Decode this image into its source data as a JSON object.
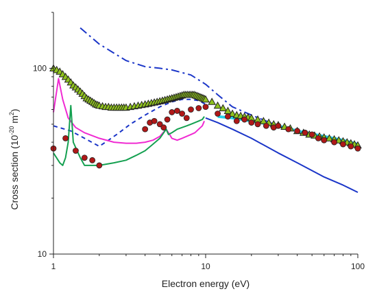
{
  "chart_data": {
    "type": "line",
    "title": "",
    "xlabel": "Electron energy (eV)",
    "ylabel_main": "Cross section (10",
    "ylabel_sup": "-20",
    "ylabel_tail": " m",
    "ylabel_sup2": "2",
    "ylabel_end": ")",
    "xscale": "log",
    "yscale": "log",
    "xlim": [
      1,
      100
    ],
    "ylim": [
      10,
      200
    ],
    "x_ticks": [
      {
        "value": 1,
        "label": "1"
      },
      {
        "value": 10,
        "label": "10"
      },
      {
        "value": 100,
        "label": "100"
      }
    ],
    "y_ticks": [
      {
        "value": 10,
        "label": "10"
      },
      {
        "value": 100,
        "label": "100"
      }
    ],
    "series": [
      {
        "style": "dash-dot",
        "color": "#1a35c8",
        "x": [
          1.5,
          2,
          3,
          4,
          5,
          6,
          8,
          10,
          12,
          15,
          20,
          30,
          40,
          60,
          80,
          100
        ],
        "y": [
          165,
          135,
          110,
          102,
          100,
          98,
          92,
          82,
          72,
          62,
          56,
          49,
          46,
          42,
          40,
          38
        ]
      },
      {
        "style": "dashed",
        "color": "#1a35c8",
        "x": [
          1,
          1.3,
          1.6,
          2,
          2.3,
          2.7,
          3.2,
          4,
          5,
          6,
          7,
          8,
          9,
          10
        ],
        "y": [
          49,
          46,
          42,
          38,
          41,
          45,
          50,
          56,
          62,
          66,
          68,
          68,
          67,
          64
        ]
      },
      {
        "style": "solid",
        "color": "#1a35c8",
        "x": [
          10,
          12,
          15,
          20,
          30,
          40,
          60,
          80,
          100
        ],
        "y": [
          54,
          51,
          47,
          42,
          35,
          31,
          26,
          23.5,
          21.5
        ]
      },
      {
        "style": "solid",
        "color": "#f02ad2",
        "x": [
          1,
          1.08,
          1.15,
          1.25,
          1.4,
          1.6,
          2,
          2.5,
          3,
          3.5,
          4,
          4.5,
          5,
          5.5,
          5.8,
          6,
          6.5,
          7,
          7.5,
          8,
          8.5,
          9,
          9.5,
          9.8
        ],
        "y": [
          58,
          88,
          68,
          54,
          48,
          45,
          42,
          40,
          39.5,
          39.5,
          40,
          41,
          43,
          47,
          44,
          42,
          41,
          42,
          43,
          44,
          45,
          47,
          49,
          52
        ]
      },
      {
        "style": "solid",
        "color": "#14a050",
        "x": [
          1,
          1.1,
          1.15,
          1.2,
          1.25,
          1.3,
          1.35,
          1.5,
          1.6,
          2,
          2.5,
          3,
          3.5,
          4,
          4.5,
          5,
          5.5,
          5.7,
          6,
          6.5,
          7,
          7.5,
          8,
          8.5,
          9,
          9.5,
          9.8
        ],
        "y": [
          35,
          31,
          30,
          33,
          40,
          63,
          40,
          33,
          30,
          30,
          31,
          32,
          34,
          36,
          39,
          42,
          47,
          44,
          45,
          47,
          48,
          49,
          50,
          51,
          52,
          53,
          55
        ]
      },
      {
        "style": "solid",
        "color": "#25d0e8",
        "x": [
          12,
          15,
          20,
          30,
          40,
          60,
          80,
          100
        ],
        "y": [
          55,
          54,
          52,
          49,
          46,
          43,
          41,
          39
        ]
      }
    ],
    "markers": [
      {
        "shape": "triangle",
        "fill": "#8fc21e",
        "stroke": "#222222",
        "x": [
          1.0,
          1.05,
          1.1,
          1.15,
          1.2,
          1.25,
          1.3,
          1.35,
          1.4,
          1.45,
          1.5,
          1.55,
          1.6,
          1.65,
          1.7,
          1.75,
          1.8,
          1.85,
          1.9,
          1.95,
          2.0,
          2.1,
          2.2,
          2.3,
          2.4,
          2.5,
          2.6,
          2.7,
          2.8,
          2.9,
          3.0,
          3.2,
          3.4,
          3.6,
          3.8,
          4.0,
          4.2,
          4.4,
          4.6,
          4.8,
          5.0,
          5.2,
          5.4,
          5.6,
          5.8,
          6.0,
          6.2,
          6.4,
          6.6,
          6.8,
          7.0,
          7.2,
          7.4,
          7.6,
          7.8,
          8.0,
          8.2,
          8.4,
          8.6,
          8.8,
          9.0,
          9.2,
          9.4,
          9.6,
          9.8,
          10.0,
          11,
          12,
          13,
          14,
          15,
          16,
          17,
          18,
          19,
          20,
          22,
          24,
          26,
          28,
          30,
          33,
          36,
          40,
          44,
          48,
          52,
          56,
          60,
          65,
          70,
          75,
          80,
          85,
          90,
          95,
          100
        ],
        "y": [
          100,
          98,
          96,
          93,
          90,
          87,
          84,
          81,
          79,
          77,
          75,
          73,
          71,
          69,
          68,
          67,
          66,
          65,
          64,
          63.5,
          63,
          62.5,
          62,
          62,
          61.5,
          61.5,
          61.5,
          61.5,
          61.5,
          61.5,
          61.5,
          62,
          62.5,
          63,
          63.5,
          64,
          64.5,
          65,
          65.5,
          66,
          66.5,
          67,
          67.5,
          68,
          68.5,
          69,
          69.5,
          70,
          70.5,
          71,
          71.5,
          72,
          72,
          72,
          72,
          72,
          72,
          72,
          71.5,
          71,
          70.5,
          70,
          69.5,
          69,
          68.5,
          68,
          66,
          63,
          61,
          59,
          57,
          56,
          55.5,
          55,
          54.5,
          54,
          53,
          52,
          51,
          50,
          49.5,
          48.5,
          47.5,
          46,
          45,
          44,
          43.5,
          43,
          42.5,
          42,
          41.5,
          41,
          40.5,
          40,
          39.5,
          39,
          38.5
        ]
      },
      {
        "shape": "circle",
        "fill": "#b01818",
        "stroke": "#222222",
        "x": [
          1.0,
          1.2,
          1.4,
          1.6,
          1.8,
          2.0,
          4.0,
          4.3,
          4.6,
          5.0,
          5.3,
          5.6,
          6.0,
          6.5,
          7.0,
          7.5,
          8.0,
          9.0,
          10,
          12,
          14,
          16,
          18,
          20,
          22,
          25,
          28,
          30,
          35,
          40,
          45,
          50,
          55,
          60,
          70,
          80,
          90,
          100
        ],
        "y": [
          37,
          42,
          36,
          33,
          32,
          30,
          47,
          51,
          52,
          50,
          48,
          53,
          58,
          59,
          57,
          54,
          60,
          61,
          62,
          57,
          55,
          52,
          53,
          51,
          50,
          49,
          48,
          49,
          47,
          46,
          45,
          44,
          42,
          41,
          40,
          39,
          38,
          37
        ]
      }
    ]
  }
}
